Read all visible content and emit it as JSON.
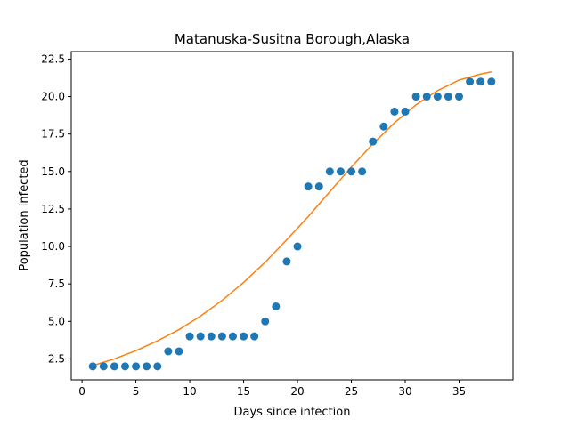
{
  "chart_data": {
    "type": "scatter",
    "title": "Matanuska-Susitna Borough,Alaska",
    "xlabel": "Days since infection",
    "ylabel": "Population infected",
    "xlim": [
      -1,
      40
    ],
    "ylim": [
      1.1,
      23.0
    ],
    "x_ticks": [
      0,
      5,
      10,
      15,
      20,
      25,
      30,
      35
    ],
    "y_ticks": [
      2.5,
      5.0,
      7.5,
      10.0,
      12.5,
      15.0,
      17.5,
      20.0,
      22.5
    ],
    "y_tick_labels": [
      "2.5",
      "5.0",
      "7.5",
      "10.0",
      "12.5",
      "15.0",
      "17.5",
      "20.0",
      "22.5"
    ],
    "grid": false,
    "series": [
      {
        "kind": "points",
        "color": "#1f77b4",
        "x": [
          1,
          2,
          3,
          4,
          5,
          6,
          7,
          8,
          9,
          10,
          11,
          12,
          13,
          14,
          15,
          16,
          17,
          18,
          19,
          20,
          21,
          22,
          23,
          24,
          25,
          26,
          27,
          28,
          29,
          30,
          31,
          32,
          33,
          34,
          35,
          36,
          37,
          38
        ],
        "y": [
          2,
          2,
          2,
          2,
          2,
          2,
          2,
          3,
          3,
          4,
          4,
          4,
          4,
          4,
          4,
          4,
          5,
          6,
          9,
          10,
          14,
          14,
          15,
          15,
          15,
          15,
          17,
          18,
          19,
          19,
          20,
          20,
          20,
          20,
          20,
          21,
          21,
          21
        ]
      },
      {
        "kind": "fit-line",
        "color": "#ff7f0e",
        "x": [
          1,
          3,
          5,
          7,
          9,
          11,
          13,
          15,
          17,
          19,
          21,
          23,
          25,
          27,
          29,
          31,
          33,
          35,
          37,
          38
        ],
        "y": [
          2.05,
          2.5,
          3.05,
          3.7,
          4.45,
          5.35,
          6.4,
          7.6,
          8.95,
          10.45,
          12.0,
          13.65,
          15.3,
          16.85,
          18.25,
          19.45,
          20.4,
          21.1,
          21.5,
          21.65
        ]
      }
    ]
  }
}
